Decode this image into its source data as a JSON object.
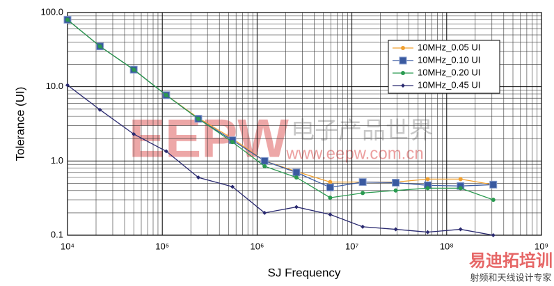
{
  "chart_data": {
    "type": "line",
    "x_label": "SJ Frequency",
    "y_label": "Tolerance (UI)",
    "log_x": true,
    "log_y": true,
    "grid": true,
    "minor_grid": true,
    "legend": "upper right",
    "xlim": [
      10000,
      1000000000
    ],
    "ylim": [
      0.1,
      100
    ],
    "xticks": [
      {
        "value": 10000,
        "label": "10⁴"
      },
      {
        "value": 100000,
        "label": "10⁵"
      },
      {
        "value": 1000000,
        "label": "10⁶"
      },
      {
        "value": 10000000,
        "label": "10⁷"
      },
      {
        "value": 100000000,
        "label": "10⁸"
      },
      {
        "value": 1000000000,
        "label": "10⁹"
      }
    ],
    "yticks": [
      0.1,
      {
        "value": 1,
        "label": "1.0"
      },
      {
        "value": 10,
        "label": "10.0"
      },
      {
        "value": 100,
        "label": "100.0"
      }
    ],
    "x": [
      10000,
      22000,
      50000,
      110000,
      240000,
      550000,
      1200000,
      2600000,
      5900000,
      13000000,
      29000000,
      63000000,
      140000000,
      310000000
    ],
    "series": [
      {
        "name": "10MHz_0.05 UI",
        "color": "#f0a030",
        "marker": "circle",
        "values": [
          80,
          35,
          17,
          7.7,
          3.8,
          2.0,
          1.0,
          0.72,
          0.52,
          0.52,
          0.52,
          0.57,
          0.57,
          0.48
        ]
      },
      {
        "name": "10MHz_0.10 UI",
        "color": "#3a5aa0",
        "marker": "square",
        "values": [
          80,
          35,
          17,
          7.7,
          3.7,
          1.9,
          1.0,
          0.7,
          0.44,
          0.52,
          0.51,
          0.47,
          0.46,
          0.48
        ]
      },
      {
        "name": "10MHz_0.20 UI",
        "color": "#2a9a50",
        "marker": "circle",
        "values": [
          80,
          35,
          17,
          7.7,
          3.7,
          1.8,
          0.85,
          0.6,
          0.32,
          0.37,
          0.4,
          0.43,
          0.43,
          0.3
        ]
      },
      {
        "name": "10MHz_0.45 UI",
        "color": "#2a2a70",
        "marker": "diamond",
        "values": [
          10.5,
          4.9,
          2.3,
          1.35,
          0.6,
          0.45,
          0.2,
          0.24,
          0.19,
          0.13,
          0.12,
          0.11,
          0.12,
          0.1
        ]
      }
    ]
  },
  "watermarks": [
    "EEPW",
    "电子产品世界",
    "www.eepw.com.cn",
    "易迪拓培训",
    "射频和天线设计专家"
  ]
}
